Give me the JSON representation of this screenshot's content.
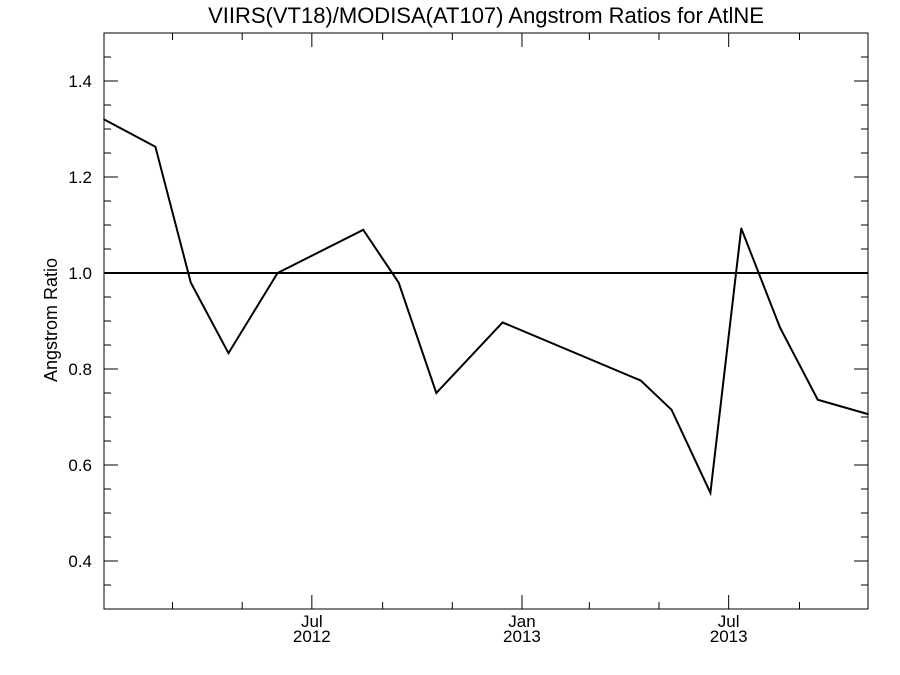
{
  "chart_data": {
    "type": "line",
    "title": "VIIRS(VT18)/MODISA(AT107)  Angstrom Ratios for AtlNE",
    "xlabel": "",
    "ylabel": "Angstrom Ratio",
    "ylim": [
      0.3,
      1.5
    ],
    "xlim": [
      "2012-01-01",
      "2013-10-31"
    ],
    "y_ticks": [
      {
        "value": 0.4,
        "label": "0.4"
      },
      {
        "value": 0.6,
        "label": "0.6"
      },
      {
        "value": 0.8,
        "label": "0.8"
      },
      {
        "value": 1.0,
        "label": "1.0"
      },
      {
        "value": 1.2,
        "label": "1.2"
      },
      {
        "value": 1.4,
        "label": "1.4"
      }
    ],
    "x_ticks": [
      {
        "date": "2012-07-01",
        "label": "Jul",
        "sublabel": "2012"
      },
      {
        "date": "2013-01-01",
        "label": "Jan",
        "sublabel": "2013"
      },
      {
        "date": "2013-07-01",
        "label": "Jul",
        "sublabel": "2013"
      }
    ],
    "x_minor_ticks": [
      "2012-03-01",
      "2012-05-01",
      "2012-09-01",
      "2012-11-01",
      "2013-03-01",
      "2013-05-01",
      "2013-09-01"
    ],
    "reference_line": 1.0,
    "grid": false,
    "series": [
      {
        "x": [
          "2012-01-01",
          "2012-02-15",
          "2012-03-17",
          "2012-04-19",
          "2012-06-01",
          "2012-08-15",
          "2012-09-15",
          "2012-10-18",
          "2012-12-15",
          "2013-04-15",
          "2013-05-12",
          "2013-06-15",
          "2013-07-12",
          "2013-08-15",
          "2013-09-17",
          "2013-10-31"
        ],
        "values": [
          1.32,
          1.263,
          0.98,
          0.833,
          1.0,
          1.09,
          0.98,
          0.75,
          0.897,
          0.776,
          0.715,
          0.542,
          1.093,
          0.886,
          0.736,
          0.706
        ]
      }
    ]
  }
}
